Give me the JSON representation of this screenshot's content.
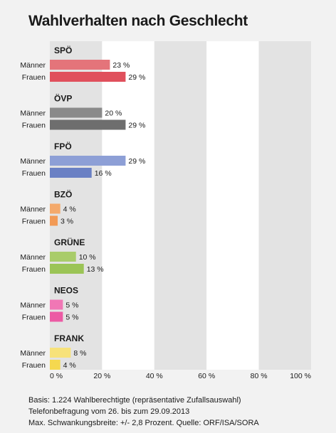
{
  "title": "Wahlverhalten nach Geschlecht",
  "footnote": {
    "line1": "Basis: 1.224 Wahlberechtigte (repräsentative Zufallsauswahl)",
    "line2": "Telefonbefragung vom 26. bis zum 29.09.2013",
    "line3": "Max. Schwankungsbreite: +/- 2,8 Prozent. Quelle: ORF/ISA/SORA"
  },
  "chart_data": {
    "type": "bar",
    "orientation": "horizontal",
    "xlim": [
      0,
      100
    ],
    "ticks": [
      0,
      20,
      40,
      60,
      80,
      100
    ],
    "tick_labels": [
      "0 %",
      "20 %",
      "40 %",
      "60 %",
      "80 %",
      "100 %"
    ],
    "value_suffix": " %",
    "grid_background": "alternating gray/white bands every 20 %",
    "groups": [
      {
        "name": "SPÖ",
        "color_m": "#e4747a",
        "color_f": "#e0505c",
        "bars": [
          {
            "label": "Männer",
            "value": 23
          },
          {
            "label": "Frauen",
            "value": 29
          }
        ]
      },
      {
        "name": "ÖVP",
        "color_m": "#8a8a8a",
        "color_f": "#6e6e6e",
        "bars": [
          {
            "label": "Männer",
            "value": 20
          },
          {
            "label": "Frauen",
            "value": 29
          }
        ]
      },
      {
        "name": "FPÖ",
        "color_m": "#8d9fd6",
        "color_f": "#6a80c4",
        "bars": [
          {
            "label": "Männer",
            "value": 29
          },
          {
            "label": "Frauen",
            "value": 16
          }
        ]
      },
      {
        "name": "BZÖ",
        "color_m": "#f4a96b",
        "color_f": "#f29a55",
        "bars": [
          {
            "label": "Männer",
            "value": 4
          },
          {
            "label": "Frauen",
            "value": 3
          }
        ]
      },
      {
        "name": "GRÜNE",
        "color_m": "#a9cc6a",
        "color_f": "#9bc456",
        "bars": [
          {
            "label": "Männer",
            "value": 10
          },
          {
            "label": "Frauen",
            "value": 13
          }
        ]
      },
      {
        "name": "NEOS",
        "color_m": "#f077b5",
        "color_f": "#ec5aa4",
        "bars": [
          {
            "label": "Männer",
            "value": 5
          },
          {
            "label": "Frauen",
            "value": 5
          }
        ]
      },
      {
        "name": "FRANK",
        "color_m": "#f7e27a",
        "color_f": "#f5d84f",
        "bars": [
          {
            "label": "Männer",
            "value": 8
          },
          {
            "label": "Frauen",
            "value": 4
          }
        ]
      }
    ]
  },
  "colors": {
    "band_gray": "#e3e3e3",
    "band_white": "#ffffff",
    "page_background": "#f2f2f2",
    "text": "#1a1a1a"
  }
}
